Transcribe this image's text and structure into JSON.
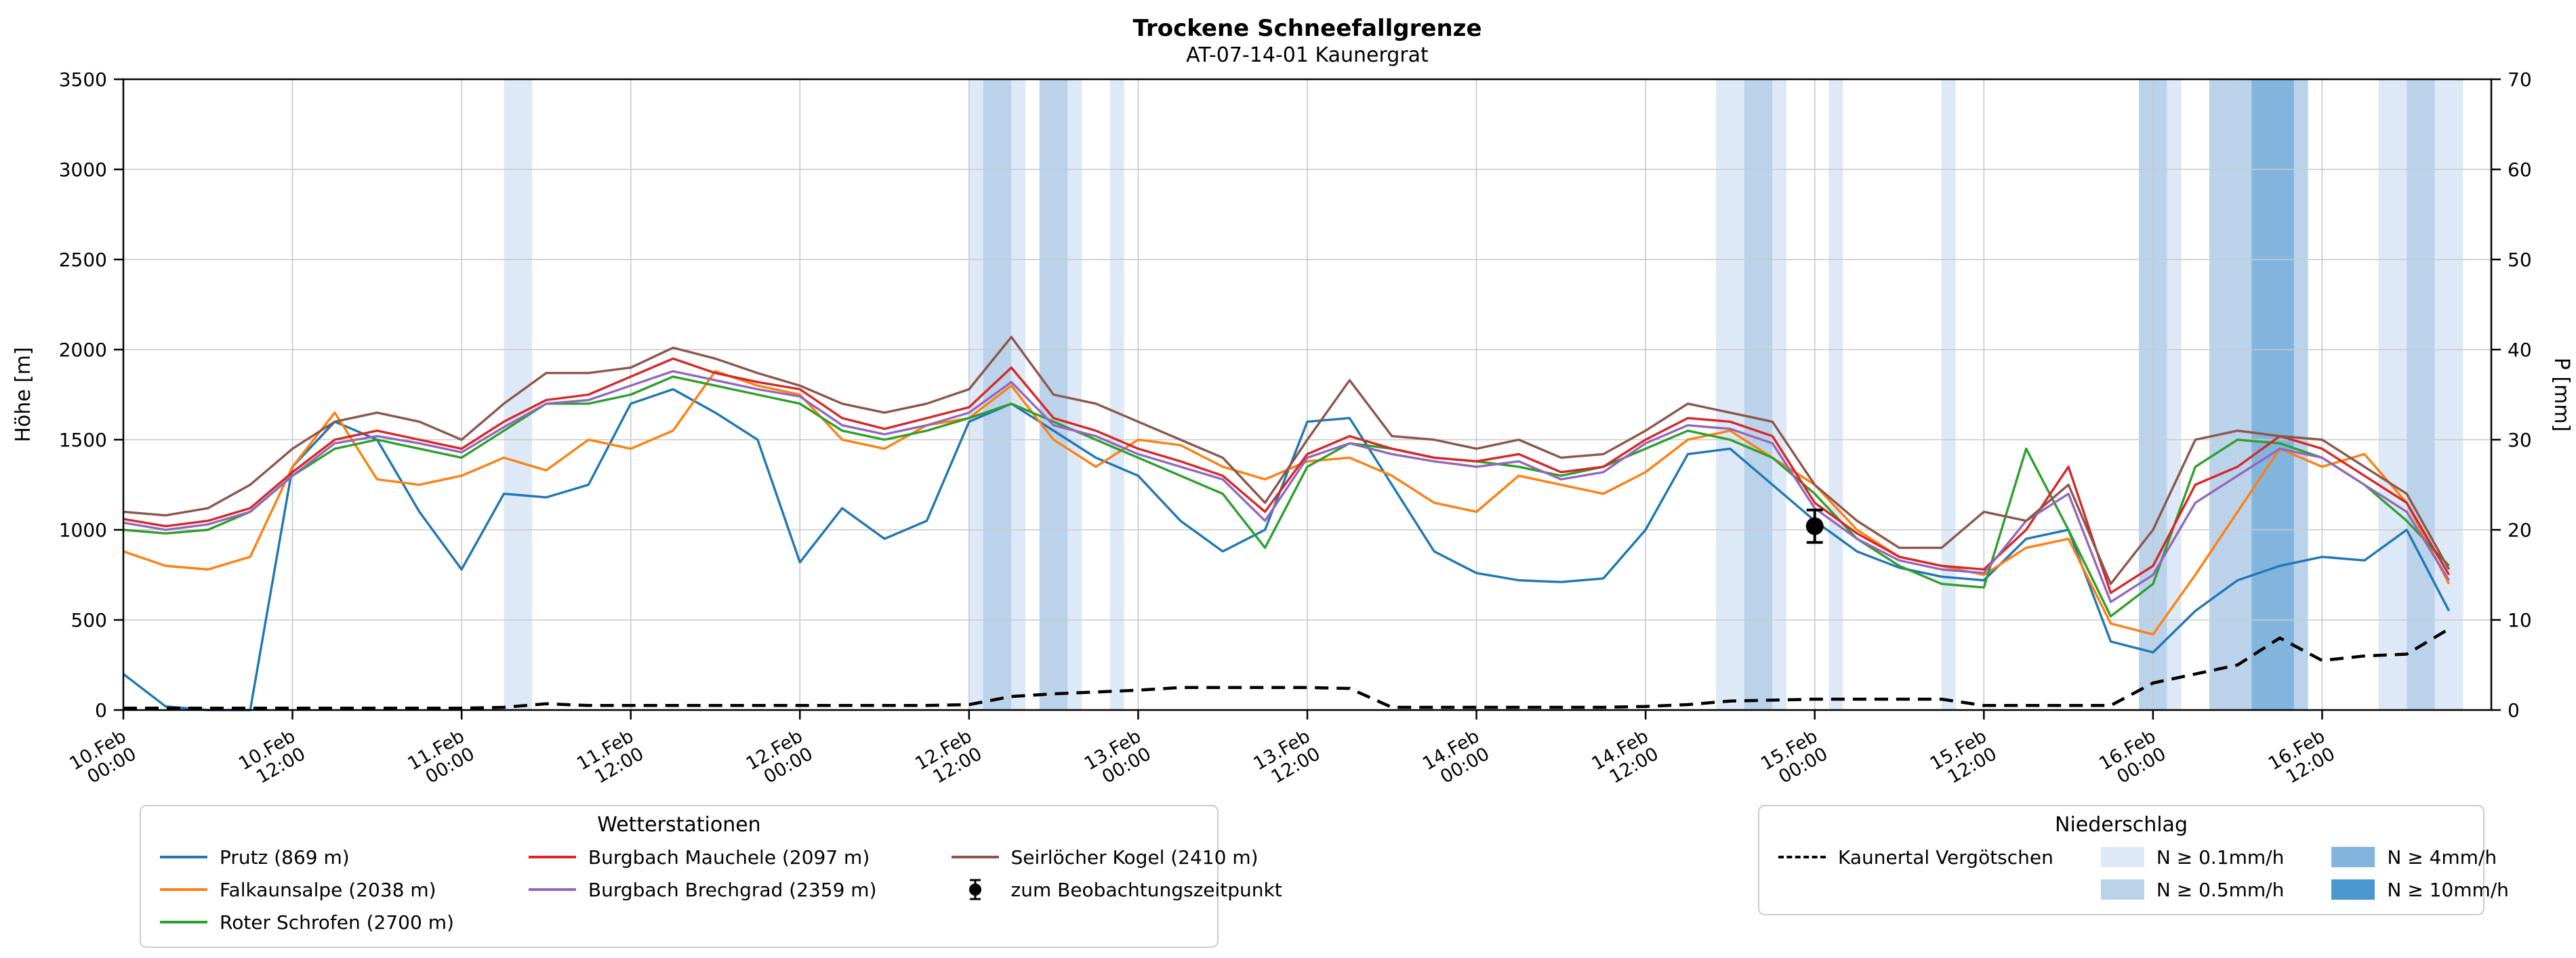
{
  "title": "Trockene Schneefallgrenze",
  "subtitle": "AT-07-14-01 Kaunergrat",
  "axes": {
    "y_left": {
      "label": "Höhe [m]",
      "min": 0,
      "max": 3500,
      "step": 500
    },
    "y_right": {
      "label": "P [mm]",
      "min": 0,
      "max": 70,
      "step": 10
    },
    "x_ticks": [
      {
        "h": 0,
        "date": "10.Feb",
        "time": "00:00"
      },
      {
        "h": 12,
        "date": "10.Feb",
        "time": "12:00"
      },
      {
        "h": 24,
        "date": "11.Feb",
        "time": "00:00"
      },
      {
        "h": 36,
        "date": "11.Feb",
        "time": "12:00"
      },
      {
        "h": 48,
        "date": "12.Feb",
        "time": "00:00"
      },
      {
        "h": 60,
        "date": "12.Feb",
        "time": "12:00"
      },
      {
        "h": 72,
        "date": "13.Feb",
        "time": "00:00"
      },
      {
        "h": 84,
        "date": "13.Feb",
        "time": "12:00"
      },
      {
        "h": 96,
        "date": "14.Feb",
        "time": "00:00"
      },
      {
        "h": 108,
        "date": "14.Feb",
        "time": "12:00"
      },
      {
        "h": 120,
        "date": "15.Feb",
        "time": "00:00"
      },
      {
        "h": 132,
        "date": "15.Feb",
        "time": "12:00"
      },
      {
        "h": 144,
        "date": "16.Feb",
        "time": "00:00"
      },
      {
        "h": 156,
        "date": "16.Feb",
        "time": "12:00"
      }
    ]
  },
  "band_colors": {
    "0.1": "#dde9f6",
    "0.5": "#bad3eb",
    "4": "#82b5de",
    "10": "#4a98cf"
  },
  "legend_stations": {
    "title": "Wetterstationen",
    "columns": [
      [
        {
          "type": "line",
          "label": "Prutz (869 m)",
          "color": "#1f77b4"
        },
        {
          "type": "line",
          "label": "Falkaunsalpe (2038 m)",
          "color": "#ff7f0e"
        },
        {
          "type": "line",
          "label": "Roter Schrofen (2700 m)",
          "color": "#2ca02c"
        }
      ],
      [
        {
          "type": "line",
          "label": "Burgbach Mauchele (2097 m)",
          "color": "#d62728"
        },
        {
          "type": "line",
          "label": "Burgbach Brechgrad (2359 m)",
          "color": "#9467bd"
        }
      ],
      [
        {
          "type": "line",
          "label": "Seirlöcher Kogel (2410 m)",
          "color": "#8c564b"
        },
        {
          "type": "marker",
          "label": "zum Beobachtungszeitpunkt",
          "color": "#000000"
        }
      ]
    ]
  },
  "legend_precip": {
    "title": "Niederschlag",
    "line_label": "Kaunertal Vergötschen",
    "levels": [
      {
        "key": "0.1",
        "label": "N ≥ 0.1mm/h"
      },
      {
        "key": "0.5",
        "label": "N ≥ 0.5mm/h"
      },
      {
        "key": "4",
        "label": "N ≥ 4mm/h"
      },
      {
        "key": "10",
        "label": "N ≥ 10mm/h"
      }
    ]
  },
  "chart_data": {
    "type": "line",
    "title": "Trockene Schneefallgrenze",
    "subtitle": "AT-07-14-01 Kaunergrat",
    "x_unit": "hours since 10.Feb 00:00",
    "x_domain": [
      0,
      168
    ],
    "x_start": 0,
    "x_step": 3,
    "ylim_left": [
      0,
      3500
    ],
    "ylim_right": [
      0,
      70
    ],
    "grid": true,
    "series": [
      {
        "name": "Prutz (869 m)",
        "color": "#1f77b4",
        "axis": "left",
        "dash": false,
        "values": [
          200,
          20,
          0,
          0,
          1350,
          1600,
          1500,
          1100,
          780,
          1200,
          1180,
          1250,
          1700,
          1780,
          1650,
          1500,
          820,
          1120,
          950,
          1050,
          1600,
          1700,
          1550,
          1400,
          1300,
          1050,
          880,
          1000,
          1600,
          1620,
          1250,
          880,
          760,
          720,
          710,
          730,
          1000,
          1420,
          1450,
          1250,
          1050,
          880,
          790,
          740,
          720,
          950,
          1000,
          380,
          320,
          550,
          720,
          800,
          850,
          830,
          1000,
          550
        ]
      },
      {
        "name": "Falkaunsalpe (2038 m)",
        "color": "#ff7f0e",
        "axis": "left",
        "dash": false,
        "values": [
          880,
          800,
          780,
          850,
          1350,
          1650,
          1280,
          1250,
          1300,
          1400,
          1330,
          1500,
          1450,
          1550,
          1880,
          1800,
          1750,
          1500,
          1450,
          1580,
          1620,
          1800,
          1500,
          1350,
          1500,
          1470,
          1350,
          1280,
          1380,
          1400,
          1300,
          1150,
          1100,
          1300,
          1250,
          1200,
          1320,
          1500,
          1550,
          1400,
          1250,
          1000,
          850,
          800,
          750,
          900,
          950,
          480,
          420,
          750,
          1100,
          1450,
          1350,
          1420,
          1150,
          700
        ]
      },
      {
        "name": "Roter Schrofen (2700 m)",
        "color": "#2ca02c",
        "axis": "left",
        "dash": false,
        "values": [
          1000,
          980,
          1000,
          1100,
          1300,
          1450,
          1500,
          1450,
          1400,
          1550,
          1700,
          1700,
          1750,
          1850,
          1800,
          1750,
          1700,
          1550,
          1500,
          1550,
          1620,
          1700,
          1600,
          1500,
          1400,
          1300,
          1200,
          900,
          1350,
          1480,
          1450,
          1400,
          1380,
          1350,
          1300,
          1350,
          1450,
          1550,
          1500,
          1400,
          1200,
          950,
          800,
          700,
          680,
          1450,
          1000,
          520,
          700,
          1350,
          1500,
          1480,
          1400,
          1250,
          1050,
          800
        ]
      },
      {
        "name": "Burgbach Mauchele (2097 m)",
        "color": "#d62728",
        "axis": "left",
        "dash": false,
        "values": [
          1060,
          1020,
          1050,
          1120,
          1320,
          1500,
          1550,
          1500,
          1450,
          1600,
          1720,
          1750,
          1850,
          1950,
          1870,
          1820,
          1780,
          1620,
          1560,
          1620,
          1680,
          1900,
          1620,
          1550,
          1450,
          1380,
          1300,
          1100,
          1420,
          1520,
          1450,
          1400,
          1380,
          1420,
          1320,
          1350,
          1500,
          1620,
          1600,
          1520,
          1150,
          980,
          850,
          800,
          780,
          1000,
          1350,
          650,
          800,
          1250,
          1350,
          1520,
          1450,
          1300,
          1150,
          750
        ]
      },
      {
        "name": "Burgbach Brechgrad (2359 m)",
        "color": "#9467bd",
        "axis": "left",
        "dash": false,
        "values": [
          1040,
          1000,
          1030,
          1100,
          1300,
          1480,
          1520,
          1480,
          1430,
          1570,
          1700,
          1720,
          1800,
          1880,
          1830,
          1780,
          1740,
          1580,
          1530,
          1580,
          1650,
          1820,
          1580,
          1520,
          1420,
          1350,
          1280,
          1050,
          1400,
          1480,
          1420,
          1380,
          1350,
          1380,
          1280,
          1320,
          1480,
          1580,
          1560,
          1480,
          1120,
          950,
          830,
          780,
          760,
          1050,
          1200,
          600,
          750,
          1150,
          1300,
          1450,
          1400,
          1250,
          1100,
          720
        ]
      },
      {
        "name": "Seirlöcher Kogel (2410 m)",
        "color": "#8c564b",
        "axis": "left",
        "dash": false,
        "values": [
          1100,
          1080,
          1120,
          1250,
          1450,
          1600,
          1650,
          1600,
          1500,
          1700,
          1870,
          1870,
          1900,
          2010,
          1950,
          1870,
          1800,
          1700,
          1650,
          1700,
          1780,
          2070,
          1750,
          1700,
          1600,
          1500,
          1400,
          1150,
          1500,
          1830,
          1520,
          1500,
          1450,
          1500,
          1400,
          1420,
          1550,
          1700,
          1650,
          1600,
          1250,
          1050,
          900,
          900,
          1100,
          1050,
          1250,
          700,
          1000,
          1500,
          1550,
          1520,
          1500,
          1350,
          1200,
          780
        ]
      },
      {
        "name": "Kaunertal Vergötschen",
        "color": "#000000",
        "axis": "right",
        "dash": true,
        "values": [
          0.2,
          0.2,
          0.2,
          0.2,
          0.2,
          0.2,
          0.2,
          0.2,
          0.2,
          0.3,
          0.7,
          0.5,
          0.5,
          0.5,
          0.5,
          0.5,
          0.5,
          0.5,
          0.5,
          0.5,
          0.6,
          1.5,
          1.8,
          2.0,
          2.2,
          2.5,
          2.5,
          2.5,
          2.5,
          2.4,
          0.3,
          0.3,
          0.3,
          0.3,
          0.3,
          0.3,
          0.4,
          0.6,
          1.0,
          1.1,
          1.2,
          1.2,
          1.2,
          1.2,
          0.5,
          0.5,
          0.5,
          0.5,
          3.0,
          4.0,
          5.0,
          8.0,
          5.5,
          6.0,
          6.2,
          9.0
        ]
      }
    ],
    "precip_bands": [
      {
        "start": 27,
        "end": 29,
        "level": "0.1"
      },
      {
        "start": 60,
        "end": 61,
        "level": "0.1"
      },
      {
        "start": 61,
        "end": 63,
        "level": "0.5"
      },
      {
        "start": 63,
        "end": 64,
        "level": "0.1"
      },
      {
        "start": 65,
        "end": 67,
        "level": "0.5"
      },
      {
        "start": 67,
        "end": 68,
        "level": "0.1"
      },
      {
        "start": 70,
        "end": 71,
        "level": "0.1"
      },
      {
        "start": 113,
        "end": 115,
        "level": "0.1"
      },
      {
        "start": 115,
        "end": 117,
        "level": "0.5"
      },
      {
        "start": 117,
        "end": 118,
        "level": "0.1"
      },
      {
        "start": 121,
        "end": 122,
        "level": "0.1"
      },
      {
        "start": 129,
        "end": 130,
        "level": "0.1"
      },
      {
        "start": 143,
        "end": 145,
        "level": "0.5"
      },
      {
        "start": 145,
        "end": 146,
        "level": "0.1"
      },
      {
        "start": 148,
        "end": 150,
        "level": "0.5"
      },
      {
        "start": 150,
        "end": 155,
        "level": "0.5"
      },
      {
        "start": 151,
        "end": 154,
        "level": "4"
      },
      {
        "start": 160,
        "end": 162,
        "level": "0.1"
      },
      {
        "start": 162,
        "end": 164,
        "level": "0.5"
      },
      {
        "start": 164,
        "end": 166,
        "level": "0.1"
      }
    ],
    "observation": {
      "x": 120,
      "y": 1020,
      "yerr": 90,
      "label": "zum Beobachtungszeitpunkt"
    }
  }
}
